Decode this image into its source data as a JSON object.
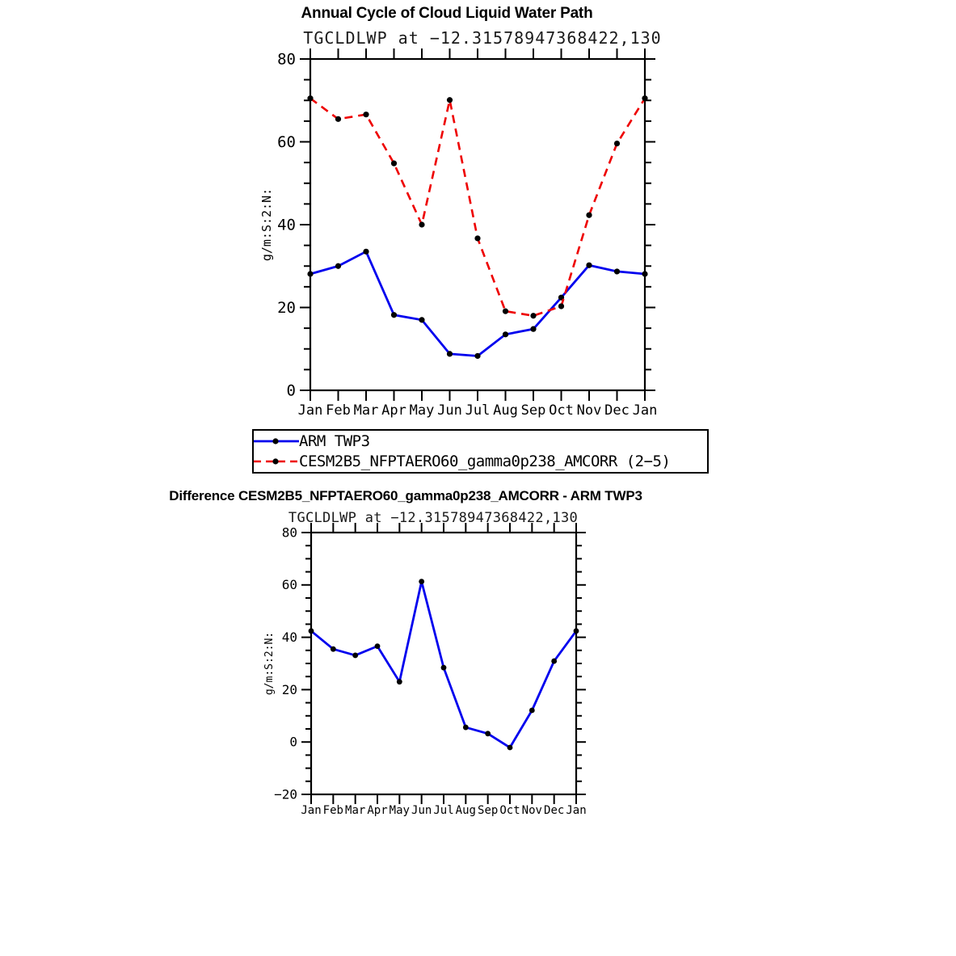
{
  "figure": {
    "background": "#ffffff",
    "axis_color": "#000000",
    "text_color": "#000000"
  },
  "chart_data": [
    {
      "type": "line",
      "title": "Annual Cycle of Cloud Liquid Water Path",
      "subtitle": "TGCLDLWP at −12.31578947368422,130",
      "ylabel": "g/m:S:2:N:",
      "xlabel": "",
      "categories": [
        "Jan",
        "Feb",
        "Mar",
        "Apr",
        "May",
        "Jun",
        "Jul",
        "Aug",
        "Sep",
        "Oct",
        "Nov",
        "Dec",
        "Jan"
      ],
      "ylim": [
        0,
        80
      ],
      "y_major_step": 20,
      "y_minor_step": 5,
      "grid": false,
      "legend_position": "below-left",
      "series": [
        {
          "name": "ARM TWP3",
          "color": "#0000ee",
          "line_style": "solid",
          "marker": "circle",
          "marker_color": "#000000",
          "values": [
            28.1,
            30.0,
            33.5,
            18.2,
            17.0,
            8.8,
            8.3,
            13.5,
            14.8,
            22.4,
            30.2,
            28.7,
            28.1
          ]
        },
        {
          "name": "CESM2B5_NFPTAERO60_gamma0p238_AMCORR (2−5)",
          "color": "#ee0000",
          "line_style": "dashed",
          "marker": "circle",
          "marker_color": "#000000",
          "values": [
            70.5,
            65.5,
            66.6,
            54.8,
            40.0,
            70.1,
            36.7,
            19.1,
            18.0,
            20.3,
            42.3,
            59.6,
            70.5
          ]
        }
      ]
    },
    {
      "type": "line",
      "title": "Difference CESM2B5_NFPTAERO60_gamma0p238_AMCORR - ARM TWP3",
      "subtitle": "TGCLDLWP at −12.31578947368422,130",
      "ylabel": "g/m:S:2:N:",
      "xlabel": "",
      "categories": [
        "Jan",
        "Feb",
        "Mar",
        "Apr",
        "May",
        "Jun",
        "Jul",
        "Aug",
        "Sep",
        "Oct",
        "Nov",
        "Dec",
        "Jan"
      ],
      "ylim": [
        -20,
        80
      ],
      "y_major_step": 20,
      "y_minor_step": 5,
      "grid": false,
      "legend_position": "none",
      "series": [
        {
          "name": "CESM2B5_NFPTAERO60_gamma0p238_AMCORR - ARM TWP3",
          "color": "#0000ee",
          "line_style": "solid",
          "marker": "circle",
          "marker_color": "#000000",
          "values": [
            42.4,
            35.5,
            33.1,
            36.6,
            23.0,
            61.3,
            28.4,
            5.6,
            3.2,
            -2.1,
            12.1,
            30.9,
            42.4
          ]
        }
      ]
    }
  ]
}
